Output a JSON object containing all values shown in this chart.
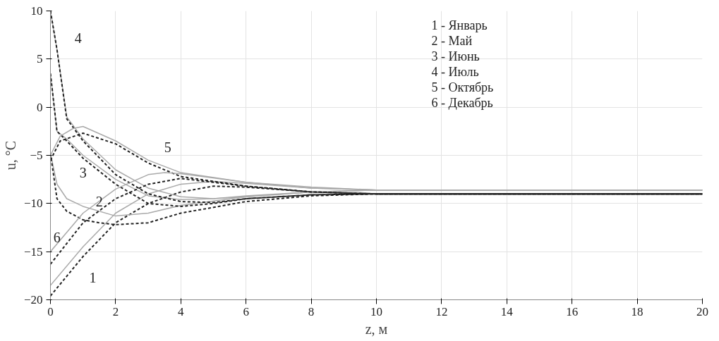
{
  "chart_data": {
    "type": "line",
    "xlabel": "z, м",
    "ylabel": "u, °C",
    "xlim": [
      0,
      20
    ],
    "ylim": [
      -20,
      10
    ],
    "xticks": [
      0,
      2,
      4,
      6,
      8,
      10,
      12,
      14,
      16,
      18,
      20
    ],
    "yticks": [
      -20,
      -15,
      -10,
      -5,
      0,
      5,
      10
    ],
    "grid": true,
    "series": [
      {
        "color": "#aaaaaa",
        "line_style": "solid",
        "x": [
          0,
          1,
          2,
          3,
          4,
          5,
          6,
          8,
          10,
          20
        ],
        "values": [
          -18.5,
          -14.5,
          -11,
          -9,
          -8,
          -7.7,
          -7.9,
          -8.4,
          -8.6,
          -8.6
        ]
      },
      {
        "color": "#222222",
        "line_style": "dashed",
        "x": [
          0,
          1,
          2,
          3,
          4,
          5,
          6,
          8,
          10,
          20
        ],
        "values": [
          -19.6,
          -15.5,
          -12,
          -10,
          -8.8,
          -8.2,
          -8.3,
          -8.8,
          -9,
          -9
        ]
      },
      {
        "color": "#aaaaaa",
        "line_style": "solid",
        "x": [
          0,
          0.2,
          0.5,
          1,
          2,
          3,
          4,
          6,
          8,
          10,
          20
        ],
        "values": [
          -4.8,
          -8,
          -9.5,
          -10.3,
          -11.3,
          -11,
          -10.2,
          -9.3,
          -8.8,
          -8.6,
          -8.6
        ]
      },
      {
        "color": "#222222",
        "line_style": "dashed",
        "x": [
          0,
          0.2,
          0.5,
          1,
          1.5,
          2,
          3,
          4,
          6,
          8,
          10,
          20
        ],
        "values": [
          -4.8,
          -9.5,
          -10.8,
          -11.7,
          -12,
          -12.2,
          -12,
          -11,
          -9.8,
          -9.2,
          -9,
          -9
        ]
      },
      {
        "color": "#aaaaaa",
        "line_style": "solid",
        "x": [
          0,
          0.2,
          0.5,
          1,
          2,
          3,
          4,
          5,
          6,
          8,
          10,
          20
        ],
        "values": [
          3.5,
          -2.5,
          -3.3,
          -5,
          -7.5,
          -9.2,
          -9.6,
          -9.5,
          -9.2,
          -8.8,
          -8.6,
          -8.6
        ]
      },
      {
        "color": "#222222",
        "line_style": "dashed",
        "x": [
          0,
          0.2,
          0.5,
          1,
          2,
          3,
          4,
          5,
          6,
          8,
          10,
          20
        ],
        "values": [
          3.5,
          -2.5,
          -3.5,
          -5.3,
          -8,
          -10,
          -10.3,
          -10,
          -9.5,
          -9.1,
          -9,
          -9
        ]
      },
      {
        "color": "#aaaaaa",
        "line_style": "solid",
        "x": [
          0,
          0.2,
          0.5,
          1,
          2,
          3,
          4,
          5,
          6,
          8,
          10,
          20
        ],
        "values": [
          10,
          6,
          -1,
          -3.3,
          -6.5,
          -8.4,
          -9.3,
          -9.5,
          -9.3,
          -8.8,
          -8.6,
          -8.6
        ]
      },
      {
        "color": "#222222",
        "line_style": "dashed",
        "x": [
          0,
          0.2,
          0.5,
          1,
          2,
          3,
          4,
          5,
          6,
          8,
          10,
          20
        ],
        "values": [
          10,
          6,
          -1.2,
          -3.5,
          -7,
          -9,
          -9.8,
          -9.9,
          -9.5,
          -9.1,
          -9,
          -9
        ]
      },
      {
        "color": "#aaaaaa",
        "line_style": "solid",
        "x": [
          0,
          0.3,
          0.7,
          1,
          2,
          3,
          4,
          6,
          8,
          10,
          20
        ],
        "values": [
          -5,
          -3,
          -2.2,
          -2,
          -3.5,
          -5.5,
          -6.8,
          -7.8,
          -8.4,
          -8.6,
          -8.6
        ]
      },
      {
        "color": "#222222",
        "line_style": "dashed",
        "x": [
          0,
          0.3,
          1,
          2,
          3,
          4,
          6,
          8,
          10,
          20
        ],
        "values": [
          -5.5,
          -3.5,
          -2.7,
          -3.8,
          -5.8,
          -7.2,
          -8.2,
          -8.8,
          -9,
          -9
        ]
      },
      {
        "color": "#aaaaaa",
        "line_style": "solid",
        "x": [
          0,
          1,
          2,
          3,
          3.5,
          4,
          6,
          8,
          10,
          20
        ],
        "values": [
          -15,
          -11,
          -8.5,
          -7,
          -6.8,
          -6.9,
          -7.8,
          -8.3,
          -8.6,
          -8.6
        ]
      },
      {
        "color": "#222222",
        "line_style": "dashed",
        "x": [
          0,
          1,
          2,
          3,
          4,
          6,
          8,
          10,
          20
        ],
        "values": [
          -16.3,
          -12,
          -9.5,
          -8,
          -7.4,
          -8.2,
          -8.8,
          -9,
          -9
        ]
      }
    ],
    "annotations": [
      "4",
      "5",
      "3",
      "2",
      "6",
      "1",
      "1 - Январь",
      "2 - Май",
      "3 - Июнь",
      "4 - Июль",
      "5 - Октябрь",
      "6 - Декабрь"
    ]
  }
}
